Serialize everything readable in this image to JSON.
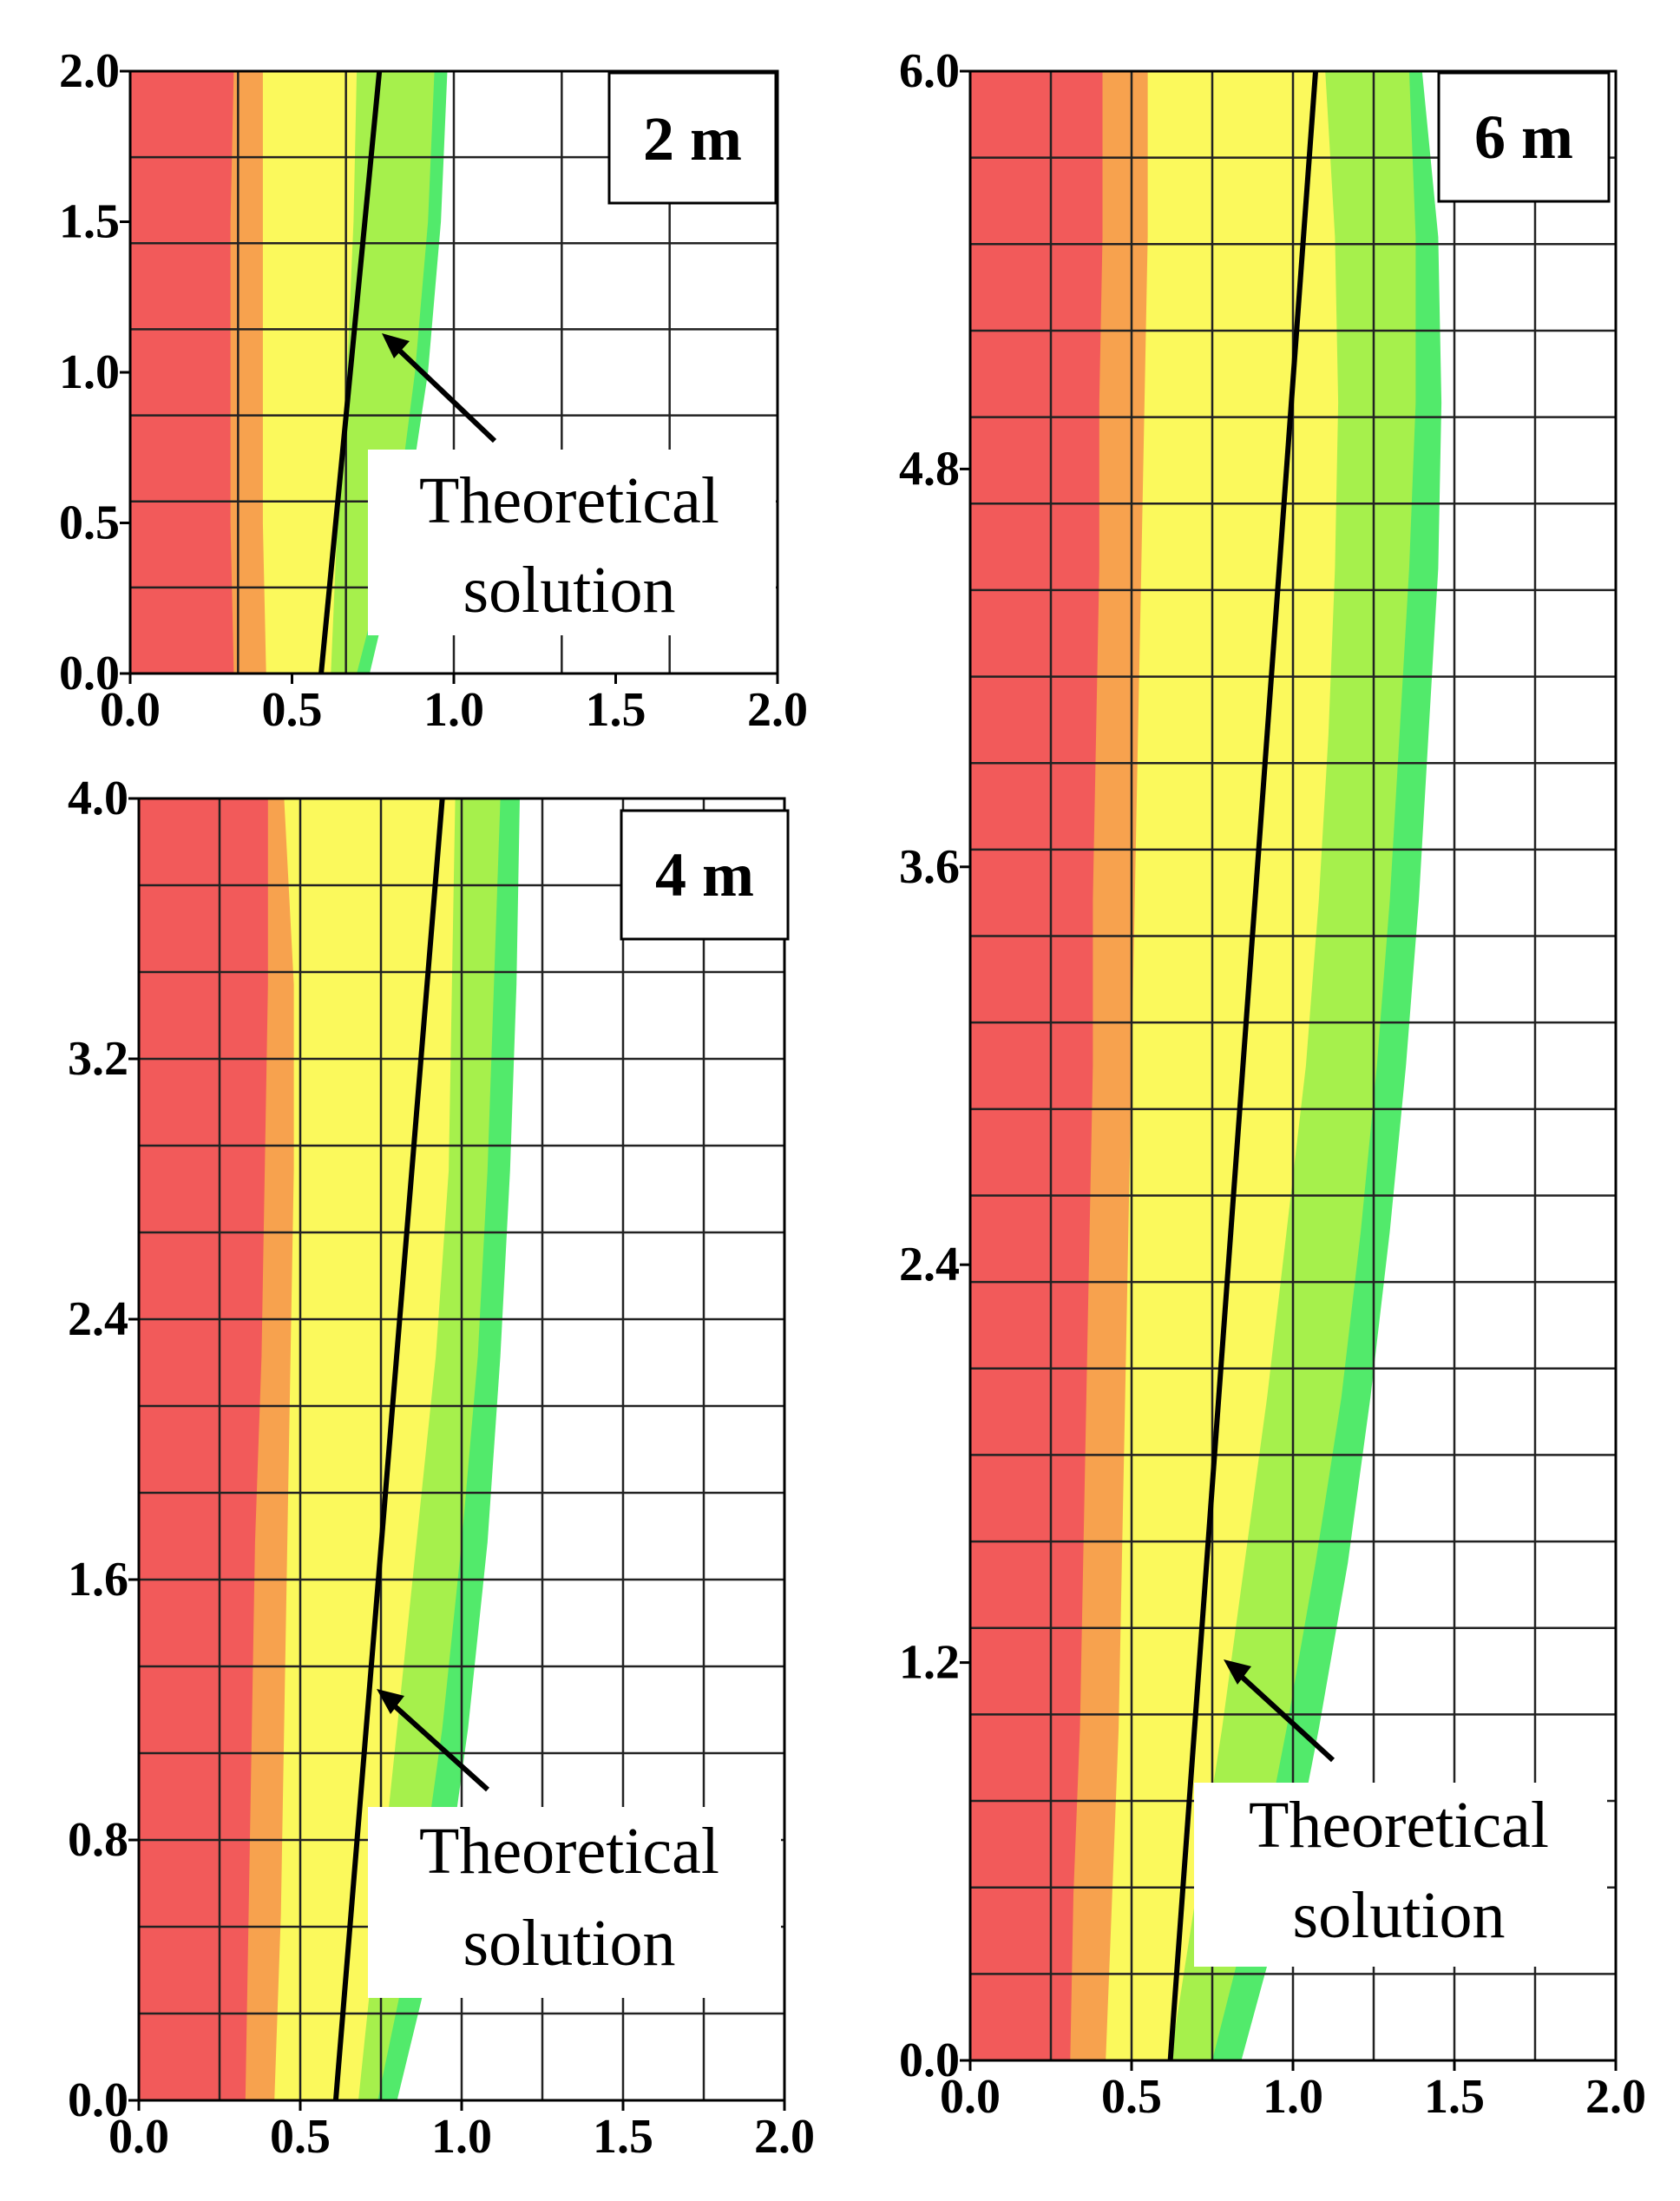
{
  "figure": {
    "colors": {
      "red": "#f25a5a",
      "orange": "#f7a24e",
      "yellow": "#fbf95c",
      "lime": "#a6f04c",
      "green": "#52ea6b",
      "white": "#ffffff",
      "grid": "#222222",
      "line": "#000000"
    }
  },
  "chart_data": [
    {
      "type": "area",
      "tag": "2 m",
      "title": "2 m",
      "xlabel": "",
      "ylabel": "",
      "xlim": [
        0,
        2
      ],
      "ylim": [
        0,
        2
      ],
      "xticks": [
        "0.0",
        "0.5",
        "1.0",
        "1.5",
        "2.0"
      ],
      "yticks": [
        "0.0",
        "0.5",
        "1.0",
        "1.5",
        "2.0"
      ],
      "grid": true,
      "legend": "none",
      "series": [
        {
          "name": "red-zone",
          "color": "red",
          "x": [
            0.32,
            0.31,
            0.31,
            0.31,
            0.32
          ]
        },
        {
          "name": "orange-zone",
          "color": "orange",
          "x": [
            0.42,
            0.41,
            0.41,
            0.41,
            0.41
          ]
        },
        {
          "name": "yellow-zone",
          "color": "yellow",
          "x": [
            0.62,
            0.64,
            0.67,
            0.69,
            0.7
          ]
        },
        {
          "name": "lime-zone",
          "color": "lime",
          "x": [
            0.7,
            0.82,
            0.88,
            0.92,
            0.94
          ]
        },
        {
          "name": "green-zone",
          "color": "green",
          "x": [
            0.74,
            0.85,
            0.92,
            0.96,
            0.98
          ]
        }
      ],
      "theoretical_line": {
        "x": [
          0.59,
          0.77
        ],
        "y": [
          0.0,
          2.0
        ]
      },
      "annotation": {
        "line1": "Theoretical",
        "line2": "solution",
        "arrow_target": [
          0.78,
          1.1
        ]
      }
    },
    {
      "type": "area",
      "tag": "4 m",
      "title": "4 m",
      "xlabel": "",
      "ylabel": "",
      "xlim": [
        0,
        2
      ],
      "ylim": [
        0,
        4
      ],
      "xticks": [
        "0.0",
        "0.5",
        "1.0",
        "1.5",
        "2.0"
      ],
      "yticks": [
        "0.0",
        "0.8",
        "1.6",
        "2.4",
        "3.2",
        "4.0"
      ],
      "grid": true,
      "legend": "none",
      "series": [
        {
          "name": "red-zone",
          "color": "red",
          "x": [
            0.33,
            0.34,
            0.35,
            0.36,
            0.38,
            0.39,
            0.4,
            0.4
          ]
        },
        {
          "name": "orange-zone",
          "color": "orange",
          "x": [
            0.42,
            0.44,
            0.45,
            0.46,
            0.47,
            0.48,
            0.48,
            0.45
          ]
        },
        {
          "name": "yellow-zone",
          "color": "yellow",
          "x": [
            0.68,
            0.74,
            0.8,
            0.86,
            0.92,
            0.96,
            0.97,
            0.98
          ]
        },
        {
          "name": "lime-zone",
          "color": "lime",
          "x": [
            0.74,
            0.86,
            0.94,
            1.0,
            1.05,
            1.08,
            1.1,
            1.12
          ]
        },
        {
          "name": "green-zone",
          "color": "green",
          "x": [
            0.8,
            0.94,
            1.02,
            1.08,
            1.12,
            1.15,
            1.17,
            1.18
          ]
        }
      ],
      "theoretical_line": {
        "x": [
          0.61,
          0.94
        ],
        "y": [
          0.0,
          4.0
        ]
      },
      "annotation": {
        "line1": "Theoretical",
        "line2": "solution",
        "arrow_target": [
          0.73,
          1.3
        ]
      }
    },
    {
      "type": "area",
      "tag": "6 m",
      "title": "6 m",
      "xlabel": "",
      "ylabel": "",
      "xlim": [
        0,
        2
      ],
      "ylim": [
        0,
        6
      ],
      "xticks": [
        "0.0",
        "0.5",
        "1.0",
        "1.5",
        "2.0"
      ],
      "yticks": [
        "0.0",
        "1.2",
        "2.4",
        "3.6",
        "4.8",
        "6.0"
      ],
      "grid": true,
      "legend": "none",
      "series": [
        {
          "name": "red-zone",
          "color": "red",
          "x": [
            0.31,
            0.32,
            0.34,
            0.35,
            0.36,
            0.37,
            0.38,
            0.38,
            0.39,
            0.4,
            0.4,
            0.41,
            0.41
          ]
        },
        {
          "name": "orange-zone",
          "color": "orange",
          "x": [
            0.42,
            0.44,
            0.46,
            0.47,
            0.48,
            0.49,
            0.5,
            0.51,
            0.52,
            0.53,
            0.54,
            0.55,
            0.55
          ]
        },
        {
          "name": "yellow-zone",
          "color": "yellow",
          "x": [
            0.62,
            0.7,
            0.78,
            0.85,
            0.92,
            0.98,
            1.04,
            1.08,
            1.11,
            1.13,
            1.14,
            1.13,
            1.1
          ]
        },
        {
          "name": "lime-zone",
          "color": "lime",
          "x": [
            0.75,
            0.88,
            0.98,
            1.07,
            1.15,
            1.21,
            1.26,
            1.3,
            1.33,
            1.36,
            1.38,
            1.38,
            1.36
          ]
        },
        {
          "name": "green-zone",
          "color": "green",
          "x": [
            0.84,
            0.98,
            1.08,
            1.17,
            1.24,
            1.3,
            1.35,
            1.39,
            1.42,
            1.45,
            1.46,
            1.45,
            1.4
          ]
        }
      ],
      "theoretical_line": {
        "x": [
          0.62,
          1.07
        ],
        "y": [
          0.0,
          6.0
        ]
      },
      "annotation": {
        "line1": "Theoretical",
        "line2": "solution",
        "arrow_target": [
          0.8,
          1.25
        ]
      }
    }
  ]
}
